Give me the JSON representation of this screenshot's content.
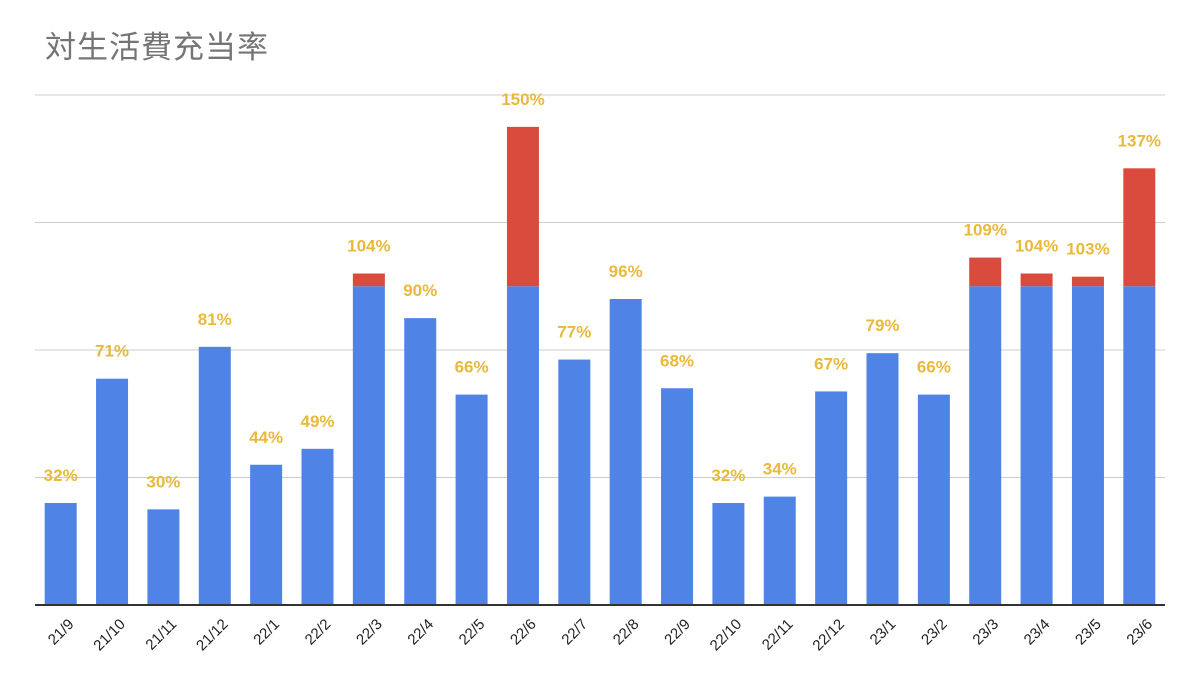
{
  "chart_data": {
    "type": "bar",
    "stacked": true,
    "title": "対生活費充当率",
    "categories": [
      "21/9",
      "21/10",
      "21/11",
      "21/12",
      "22/1",
      "22/2",
      "22/3",
      "22/4",
      "22/5",
      "22/6",
      "22/7",
      "22/8",
      "22/9",
      "22/10",
      "22/11",
      "22/12",
      "23/1",
      "23/2",
      "23/3",
      "23/4",
      "23/5",
      "23/6"
    ],
    "value_labels": [
      "32%",
      "71%",
      "30%",
      "81%",
      "44%",
      "49%",
      "104%",
      "90%",
      "66%",
      "150%",
      "77%",
      "96%",
      "68%",
      "32%",
      "34%",
      "67%",
      "79%",
      "66%",
      "109%",
      "104%",
      "103%",
      "137%"
    ],
    "totals": [
      32,
      71,
      30,
      81,
      44,
      49,
      104,
      90,
      66,
      150,
      77,
      96,
      68,
      32,
      34,
      67,
      79,
      66,
      109,
      104,
      103,
      137
    ],
    "series": [
      {
        "color": "#4f83e6",
        "values": [
          32,
          71,
          30,
          81,
          44,
          49,
          100,
          90,
          66,
          100,
          77,
          96,
          68,
          32,
          34,
          67,
          79,
          66,
          100,
          100,
          100,
          100
        ]
      },
      {
        "color": "#d94c3d",
        "values": [
          0,
          0,
          0,
          0,
          0,
          0,
          4,
          0,
          0,
          50,
          0,
          0,
          0,
          0,
          0,
          0,
          0,
          0,
          9,
          4,
          3,
          37
        ]
      }
    ],
    "ylim": [
      0,
      160
    ],
    "gridlines": [
      0,
      40,
      80,
      120,
      160
    ],
    "grid": true,
    "legend": "none",
    "label_color": "#e8b93a",
    "grid_color": "#cccccc"
  }
}
